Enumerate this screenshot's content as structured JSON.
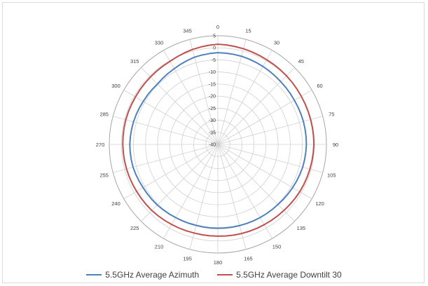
{
  "chart_data": {
    "type": "line",
    "polar": true,
    "title": "",
    "angle_labels": [
      "0",
      "15",
      "30",
      "45",
      "60",
      "75",
      "90",
      "105",
      "120",
      "135",
      "150",
      "165",
      "180",
      "195",
      "210",
      "225",
      "240",
      "255",
      "270",
      "285",
      "300",
      "315",
      "330",
      "345"
    ],
    "radial_ticks": [
      "5",
      "0",
      "-5",
      "-10",
      "-15",
      "-20",
      "-25",
      "-30",
      "-35",
      "-40"
    ],
    "rlim": [
      -40,
      5
    ],
    "angles_deg": [
      0,
      15,
      30,
      45,
      60,
      75,
      90,
      105,
      120,
      135,
      150,
      165,
      180,
      195,
      210,
      225,
      240,
      255,
      270,
      285,
      300,
      315,
      330,
      345
    ],
    "series": [
      {
        "name": "5.5GHz Average Azimuth",
        "color": "#4f81bd",
        "values": [
          -2,
          -2.2,
          -2.7,
          -3.2,
          -3.4,
          -3.3,
          -3.3,
          -3.6,
          -4.2,
          -4.8,
          -5,
          -5.2,
          -5.3,
          -5.3,
          -5,
          -4.5,
          -4.2,
          -3.6,
          -3.5,
          -3.8,
          -4.3,
          -4.6,
          -3.8,
          -2.6
        ]
      },
      {
        "name": "5.5GHz Average Downtilt 30",
        "color": "#c0504d",
        "values": [
          1.5,
          1,
          0.5,
          0.2,
          -0.1,
          -0.2,
          -0.2,
          -0.5,
          -0.8,
          -1.3,
          -1.6,
          -1.8,
          -2,
          -2,
          -1.7,
          -1.3,
          -1.1,
          -0.8,
          -0.6,
          -0.5,
          -0.6,
          -0.5,
          -0.3,
          0.7
        ]
      }
    ],
    "legend_position": "bottom",
    "grid": true
  }
}
